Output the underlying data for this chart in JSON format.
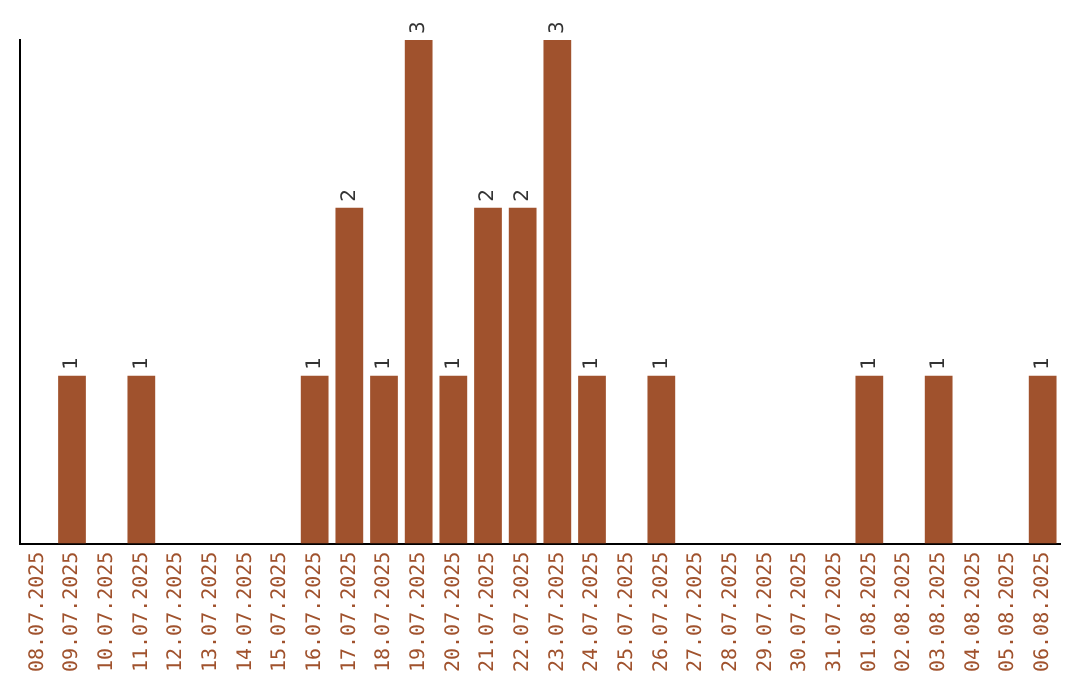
{
  "chart_data": {
    "type": "bar",
    "categories": [
      "08.07.2025",
      "09.07.2025",
      "10.07.2025",
      "11.07.2025",
      "12.07.2025",
      "13.07.2025",
      "14.07.2025",
      "15.07.2025",
      "16.07.2025",
      "17.07.2025",
      "18.07.2025",
      "19.07.2025",
      "20.07.2025",
      "21.07.2025",
      "22.07.2025",
      "23.07.2025",
      "24.07.2025",
      "25.07.2025",
      "26.07.2025",
      "27.07.2025",
      "28.07.2025",
      "29.07.2025",
      "30.07.2025",
      "31.07.2025",
      "01.08.2025",
      "02.08.2025",
      "03.08.2025",
      "04.08.2025",
      "05.08.2025",
      "06.08.2025"
    ],
    "values": [
      0,
      1,
      0,
      1,
      0,
      0,
      0,
      0,
      1,
      2,
      1,
      3,
      1,
      2,
      2,
      3,
      1,
      0,
      1,
      0,
      0,
      0,
      0,
      0,
      1,
      0,
      1,
      0,
      0,
      1
    ],
    "color": "#a0522d",
    "ylim": [
      0,
      3
    ],
    "tick_labels": "x",
    "grid": false,
    "legend": false,
    "value_labels": [
      null,
      "1",
      null,
      "1",
      null,
      null,
      null,
      null,
      "1",
      "2",
      "1",
      "3",
      "1",
      "2",
      "2",
      "3",
      "1",
      null,
      "1",
      null,
      null,
      null,
      null,
      null,
      "1",
      null,
      "1",
      null,
      null,
      "1"
    ]
  }
}
